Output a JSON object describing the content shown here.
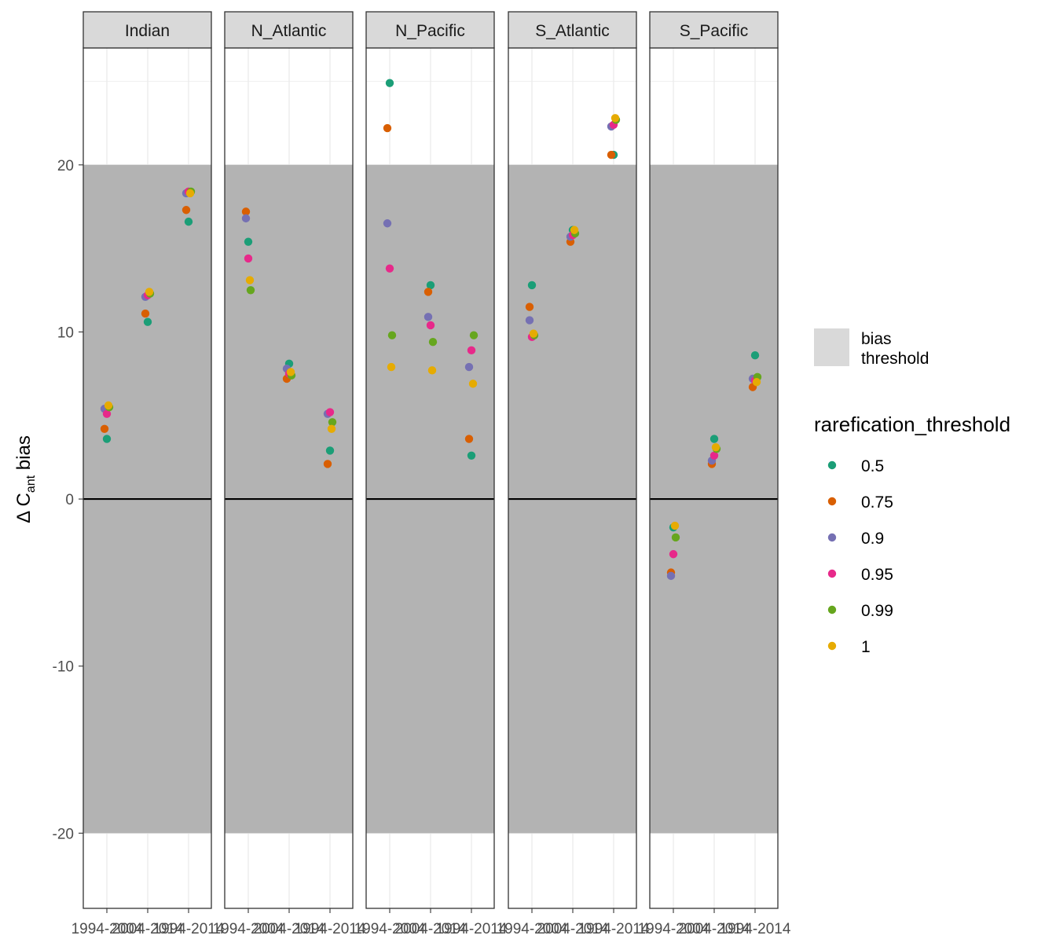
{
  "chart_data": {
    "type": "scatter",
    "ylabel_prefix": "Δ C",
    "ylabel_sub": "ant",
    "ylabel_suffix": " bias",
    "xlabel": "",
    "ylim": [
      -24.5,
      27.0
    ],
    "yticks": [
      -20,
      -10,
      0,
      10,
      20
    ],
    "ytick_labels": [
      "-20",
      "-10",
      "0",
      "10",
      "20"
    ],
    "categories": [
      "1994-2004",
      "2004-2014",
      "1994-2014"
    ],
    "xtick_labels": [
      "1994-2004",
      "2004-2014",
      "1994-2014"
    ],
    "threshold_band": [
      -20,
      20
    ],
    "reference_line": 0,
    "panels": [
      "Indian",
      "N_Atlantic",
      "N_Pacific",
      "S_Atlantic",
      "S_Pacific"
    ],
    "legend": {
      "fill_title": "",
      "fill_label_lines": [
        "bias",
        "threshold"
      ],
      "color_title": "rarefication_threshold",
      "position": "right"
    },
    "series": [
      {
        "name": "0.5",
        "color": "#1B9E77",
        "values": {
          "Indian": [
            3.6,
            10.6,
            16.6
          ],
          "N_Atlantic": [
            15.4,
            8.1,
            2.9
          ],
          "N_Pacific": [
            24.9,
            12.8,
            2.6
          ],
          "S_Atlantic": [
            12.8,
            16.1,
            20.6
          ],
          "S_Pacific": [
            -1.7,
            3.6,
            8.6
          ]
        }
      },
      {
        "name": "0.75",
        "color": "#D95F02",
        "values": {
          "Indian": [
            4.2,
            11.1,
            17.3
          ],
          "N_Atlantic": [
            17.2,
            7.2,
            2.1
          ],
          "N_Pacific": [
            22.2,
            12.4,
            3.6
          ],
          "S_Atlantic": [
            11.5,
            15.4,
            20.6
          ],
          "S_Pacific": [
            -4.4,
            2.1,
            6.7
          ]
        }
      },
      {
        "name": "0.9",
        "color": "#7570B3",
        "values": {
          "Indian": [
            5.4,
            12.1,
            18.3
          ],
          "N_Atlantic": [
            16.8,
            7.8,
            5.1
          ],
          "N_Pacific": [
            16.5,
            10.9,
            7.9
          ],
          "S_Atlantic": [
            10.7,
            15.7,
            22.3
          ],
          "S_Pacific": [
            -4.6,
            2.3,
            7.2
          ]
        }
      },
      {
        "name": "0.95",
        "color": "#E7298A",
        "values": {
          "Indian": [
            5.1,
            12.2,
            18.4
          ],
          "N_Atlantic": [
            14.4,
            7.5,
            5.2
          ],
          "N_Pacific": [
            13.8,
            10.4,
            8.9
          ],
          "S_Atlantic": [
            9.7,
            15.8,
            22.4
          ],
          "S_Pacific": [
            -3.3,
            2.6,
            7.1
          ]
        }
      },
      {
        "name": "0.99",
        "color": "#66A61E",
        "values": {
          "Indian": [
            5.5,
            12.3,
            18.4
          ],
          "N_Atlantic": [
            12.5,
            7.4,
            4.6
          ],
          "N_Pacific": [
            9.8,
            9.4,
            9.8
          ],
          "S_Atlantic": [
            9.8,
            15.9,
            22.7
          ],
          "S_Pacific": [
            -2.3,
            3.0,
            7.3
          ]
        }
      },
      {
        "name": "1",
        "color": "#E6AB02",
        "values": {
          "Indian": [
            5.6,
            12.4,
            18.3
          ],
          "N_Atlantic": [
            13.1,
            7.6,
            4.2
          ],
          "N_Pacific": [
            7.9,
            7.7,
            6.9
          ],
          "S_Atlantic": [
            9.9,
            16.1,
            22.8
          ],
          "S_Pacific": [
            -1.6,
            3.1,
            7.0
          ]
        }
      }
    ]
  },
  "colors": {
    "band_fill": "#B3B3B3",
    "strip_fill": "#D9D9D9",
    "grid": "#EBEBEB",
    "axis_text": "#4D4D4D",
    "legend_key_fill": "#D9D9D9"
  }
}
